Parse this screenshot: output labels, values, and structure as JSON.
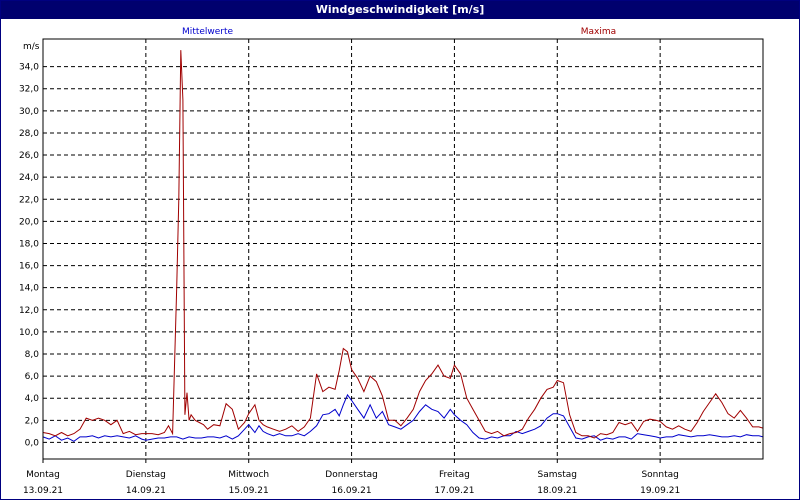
{
  "window": {
    "title": "Windgeschwindigkeit [m/s]"
  },
  "chart_data": {
    "type": "line",
    "title": "Windgeschwindigkeit [m/s]",
    "ylabel": "m/s",
    "ylim": [
      -1.5,
      36.5
    ],
    "yticks": [
      "0,0",
      "2,0",
      "4,0",
      "6,0",
      "8,0",
      "10,0",
      "12,0",
      "14,0",
      "16,0",
      "18,0",
      "20,0",
      "22,0",
      "24,0",
      "26,0",
      "28,0",
      "30,0",
      "32,0",
      "34,0"
    ],
    "grid": true,
    "xlim": [
      0,
      7
    ],
    "days": [
      {
        "name": "Montag",
        "date": "13.09.21"
      },
      {
        "name": "Dienstag",
        "date": "14.09.21"
      },
      {
        "name": "Mittwoch",
        "date": "15.09.21"
      },
      {
        "name": "Donnerstag",
        "date": "16.09.21"
      },
      {
        "name": "Freitag",
        "date": "17.09.21"
      },
      {
        "name": "Samstag",
        "date": "18.09.21"
      },
      {
        "name": "Sonntag",
        "date": "19.09.21"
      }
    ],
    "series": [
      {
        "name": "Mittelwerte",
        "color": "#0000cc",
        "x": [
          0,
          0.06,
          0.12,
          0.18,
          0.24,
          0.3,
          0.36,
          0.42,
          0.48,
          0.54,
          0.6,
          0.66,
          0.72,
          0.78,
          0.84,
          0.9,
          0.96,
          1.0,
          1.06,
          1.12,
          1.18,
          1.24,
          1.3,
          1.36,
          1.42,
          1.48,
          1.54,
          1.6,
          1.66,
          1.72,
          1.78,
          1.84,
          1.9,
          1.96,
          2.0,
          2.06,
          2.1,
          2.14,
          2.18,
          2.24,
          2.3,
          2.36,
          2.42,
          2.48,
          2.54,
          2.6,
          2.66,
          2.72,
          2.78,
          2.84,
          2.88,
          2.92,
          2.96,
          3.0,
          3.06,
          3.12,
          3.18,
          3.24,
          3.3,
          3.36,
          3.42,
          3.48,
          3.54,
          3.6,
          3.66,
          3.72,
          3.78,
          3.84,
          3.9,
          3.96,
          4.0,
          4.06,
          4.12,
          4.18,
          4.24,
          4.3,
          4.36,
          4.42,
          4.48,
          4.54,
          4.6,
          4.66,
          4.72,
          4.78,
          4.84,
          4.9,
          4.96,
          5.0,
          5.06,
          5.12,
          5.18,
          5.24,
          5.3,
          5.36,
          5.42,
          5.48,
          5.54,
          5.6,
          5.66,
          5.72,
          5.78,
          5.84,
          5.9,
          5.96,
          6.0,
          6.06,
          6.12,
          6.18,
          6.24,
          6.3,
          6.36,
          6.42,
          6.48,
          6.54,
          6.6,
          6.66,
          6.72,
          6.78,
          6.84,
          6.9,
          6.96,
          7.0
        ],
        "y": [
          0.5,
          0.3,
          0.6,
          0.2,
          0.4,
          0.1,
          0.5,
          0.5,
          0.6,
          0.4,
          0.6,
          0.5,
          0.6,
          0.5,
          0.4,
          0.6,
          0.3,
          0.2,
          0.3,
          0.4,
          0.4,
          0.5,
          0.5,
          0.3,
          0.5,
          0.4,
          0.4,
          0.5,
          0.5,
          0.4,
          0.6,
          0.3,
          0.6,
          1.2,
          1.6,
          0.9,
          1.5,
          1.0,
          0.8,
          0.6,
          0.8,
          0.6,
          0.6,
          0.8,
          0.6,
          1.0,
          1.5,
          2.5,
          2.6,
          3.0,
          2.4,
          3.4,
          4.3,
          3.8,
          3.0,
          2.2,
          3.4,
          2.2,
          2.8,
          1.6,
          1.4,
          1.2,
          1.6,
          2.0,
          2.8,
          3.4,
          3.0,
          2.8,
          2.2,
          3.0,
          2.5,
          2.0,
          1.6,
          0.9,
          0.4,
          0.3,
          0.5,
          0.4,
          0.6,
          0.6,
          1.0,
          0.8,
          1.0,
          1.2,
          1.5,
          2.2,
          2.6,
          2.6,
          2.4,
          1.4,
          0.4,
          0.3,
          0.5,
          0.6,
          0.2,
          0.4,
          0.3,
          0.5,
          0.5,
          0.3,
          0.8,
          0.7,
          0.6,
          0.5,
          0.4,
          0.5,
          0.5,
          0.7,
          0.6,
          0.5,
          0.6,
          0.6,
          0.7,
          0.6,
          0.5,
          0.5,
          0.6,
          0.5,
          0.7,
          0.6,
          0.6,
          0.5
        ],
        "label_x": 1.6
      },
      {
        "name": "Maxima",
        "color": "#a00000",
        "x": [
          0,
          0.06,
          0.12,
          0.18,
          0.24,
          0.3,
          0.36,
          0.42,
          0.48,
          0.54,
          0.6,
          0.66,
          0.72,
          0.78,
          0.84,
          0.9,
          0.96,
          1.0,
          1.06,
          1.12,
          1.18,
          1.22,
          1.26,
          1.3,
          1.32,
          1.34,
          1.36,
          1.38,
          1.4,
          1.42,
          1.44,
          1.48,
          1.52,
          1.56,
          1.6,
          1.66,
          1.72,
          1.78,
          1.84,
          1.9,
          1.96,
          2.0,
          2.06,
          2.1,
          2.14,
          2.18,
          2.24,
          2.3,
          2.36,
          2.42,
          2.48,
          2.54,
          2.6,
          2.66,
          2.72,
          2.78,
          2.84,
          2.88,
          2.92,
          2.96,
          3.0,
          3.06,
          3.12,
          3.18,
          3.24,
          3.3,
          3.36,
          3.42,
          3.48,
          3.54,
          3.6,
          3.66,
          3.72,
          3.78,
          3.84,
          3.9,
          3.96,
          4.0,
          4.06,
          4.12,
          4.18,
          4.24,
          4.3,
          4.36,
          4.42,
          4.48,
          4.54,
          4.6,
          4.66,
          4.72,
          4.78,
          4.84,
          4.9,
          4.96,
          5.0,
          5.06,
          5.12,
          5.18,
          5.24,
          5.3,
          5.36,
          5.42,
          5.48,
          5.54,
          5.6,
          5.66,
          5.72,
          5.78,
          5.84,
          5.9,
          5.96,
          6.0,
          6.06,
          6.12,
          6.18,
          6.24,
          6.3,
          6.36,
          6.42,
          6.48,
          6.54,
          6.6,
          6.66,
          6.72,
          6.78,
          6.84,
          6.9,
          6.96,
          7.0
        ],
        "y": [
          0.9,
          0.8,
          0.6,
          0.9,
          0.6,
          0.8,
          1.2,
          2.2,
          2.0,
          2.2,
          2.0,
          1.6,
          2.0,
          0.8,
          1.0,
          0.7,
          0.8,
          0.8,
          0.8,
          0.7,
          0.9,
          1.5,
          0.8,
          14.0,
          22.0,
          35.5,
          31.0,
          2.5,
          4.5,
          2.0,
          2.5,
          2.0,
          1.8,
          1.6,
          1.2,
          1.6,
          1.5,
          3.5,
          3.0,
          1.2,
          1.8,
          2.6,
          3.4,
          2.0,
          1.6,
          1.4,
          1.2,
          1.0,
          1.2,
          1.5,
          1.0,
          1.4,
          2.2,
          6.2,
          4.6,
          5.0,
          4.8,
          6.5,
          8.5,
          8.2,
          6.6,
          5.8,
          4.6,
          6.0,
          5.5,
          4.2,
          2.0,
          2.0,
          1.5,
          2.2,
          3.0,
          4.6,
          5.6,
          6.2,
          7.0,
          6.0,
          5.8,
          7.0,
          6.2,
          4.0,
          3.0,
          2.0,
          1.0,
          0.8,
          1.0,
          0.6,
          0.8,
          0.9,
          1.2,
          2.2,
          3.0,
          4.0,
          4.8,
          5.0,
          5.6,
          5.4,
          2.5,
          0.9,
          0.6,
          0.6,
          0.4,
          0.8,
          0.7,
          0.9,
          1.8,
          1.6,
          1.8,
          1.0,
          1.9,
          2.1,
          2.0,
          1.9,
          1.4,
          1.2,
          1.5,
          1.2,
          1.0,
          1.8,
          2.8,
          3.6,
          4.4,
          3.6,
          2.6,
          2.2,
          2.9,
          2.2,
          1.4,
          1.4,
          1.3
        ],
        "label_x": 5.4
      }
    ]
  }
}
